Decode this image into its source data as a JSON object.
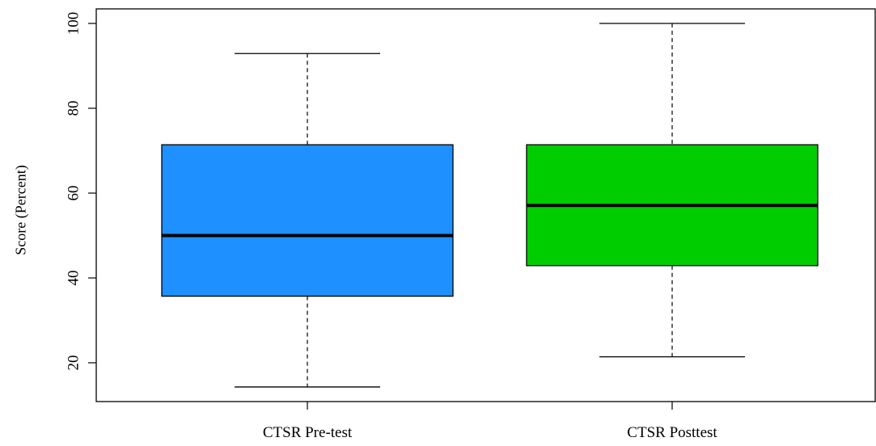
{
  "chart_data": {
    "type": "boxplot",
    "ylabel": "Score (Percent)",
    "xlabel": "",
    "ylim": [
      10,
      102
    ],
    "yticks": [
      20,
      40,
      60,
      80,
      100
    ],
    "grid": false,
    "categories": [
      "CTSR Pre-test",
      "CTSR Posttest"
    ],
    "boxes": [
      {
        "category": "CTSR Pre-test",
        "min": 14.3,
        "q1": 35.7,
        "median": 50.0,
        "q3": 71.4,
        "max": 92.9,
        "fill": "#1e90ff"
      },
      {
        "category": "CTSR Posttest",
        "min": 21.4,
        "q1": 42.9,
        "median": 57.1,
        "q3": 71.4,
        "max": 100.0,
        "fill": "#00cd00"
      }
    ]
  }
}
